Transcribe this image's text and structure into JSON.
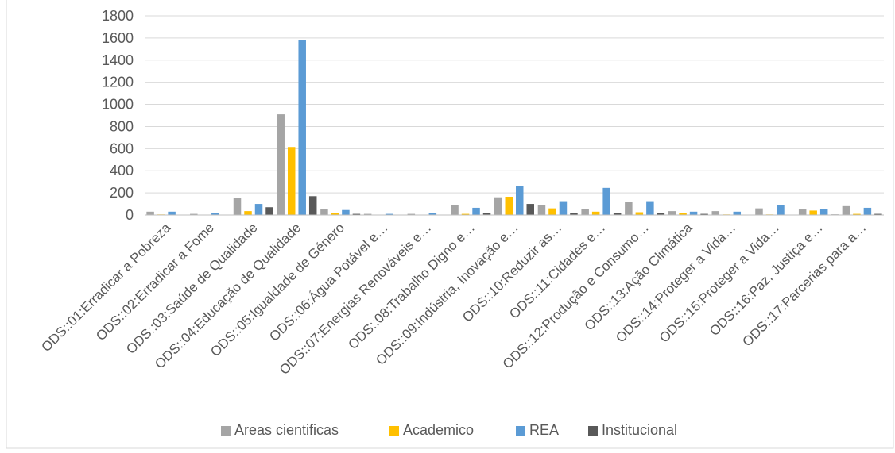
{
  "chart_data": {
    "type": "bar",
    "title": "",
    "xlabel": "",
    "ylabel": "",
    "ylim": [
      0,
      1800
    ],
    "yticks": [
      0,
      200,
      400,
      600,
      800,
      1000,
      1200,
      1400,
      1600,
      1800
    ],
    "grid": true,
    "legend_position": "bottom",
    "categories": [
      "ODS::01:Erradicar a Pobreza",
      "ODS::02:Erradicar a Fome",
      "ODS::03:Saúde de Qualidade",
      "ODS::04:Educação de Qualidade",
      "ODS::05:Igualdade de Género",
      "ODS::06:Água Potável e…",
      "ODS::07:Energias Renováveis e…",
      "ODS::08:Trabalho Digno e…",
      "ODS::09:Indústria, Inovação e…",
      "ODS::10:Reduzir as…",
      "ODS::11:Cidades e…",
      "ODS::12:Produção e Consumo…",
      "ODS::13:Ação Climática",
      "ODS::14:Proteger a Vida…",
      "ODS::15:Proteger a Vida…",
      "ODS::16:Paz, Justiça e…",
      "ODS::17:Parcerias para a…"
    ],
    "series": [
      {
        "name": "Areas cientificas",
        "color": "#a5a5a5",
        "values": [
          30,
          10,
          155,
          910,
          50,
          10,
          10,
          90,
          160,
          90,
          55,
          115,
          35,
          35,
          60,
          50,
          80
        ]
      },
      {
        "name": "Academico",
        "color": "#ffc000",
        "values": [
          5,
          2,
          35,
          615,
          20,
          3,
          3,
          10,
          165,
          60,
          30,
          25,
          15,
          5,
          5,
          40,
          10
        ]
      },
      {
        "name": "REA",
        "color": "#5b9bd5",
        "values": [
          30,
          20,
          100,
          1580,
          45,
          10,
          15,
          65,
          265,
          125,
          245,
          125,
          30,
          30,
          90,
          55,
          65
        ]
      },
      {
        "name": "Institucional",
        "color": "#595959",
        "values": [
          3,
          2,
          70,
          170,
          10,
          3,
          3,
          20,
          100,
          20,
          20,
          20,
          10,
          3,
          3,
          5,
          10
        ]
      }
    ]
  }
}
